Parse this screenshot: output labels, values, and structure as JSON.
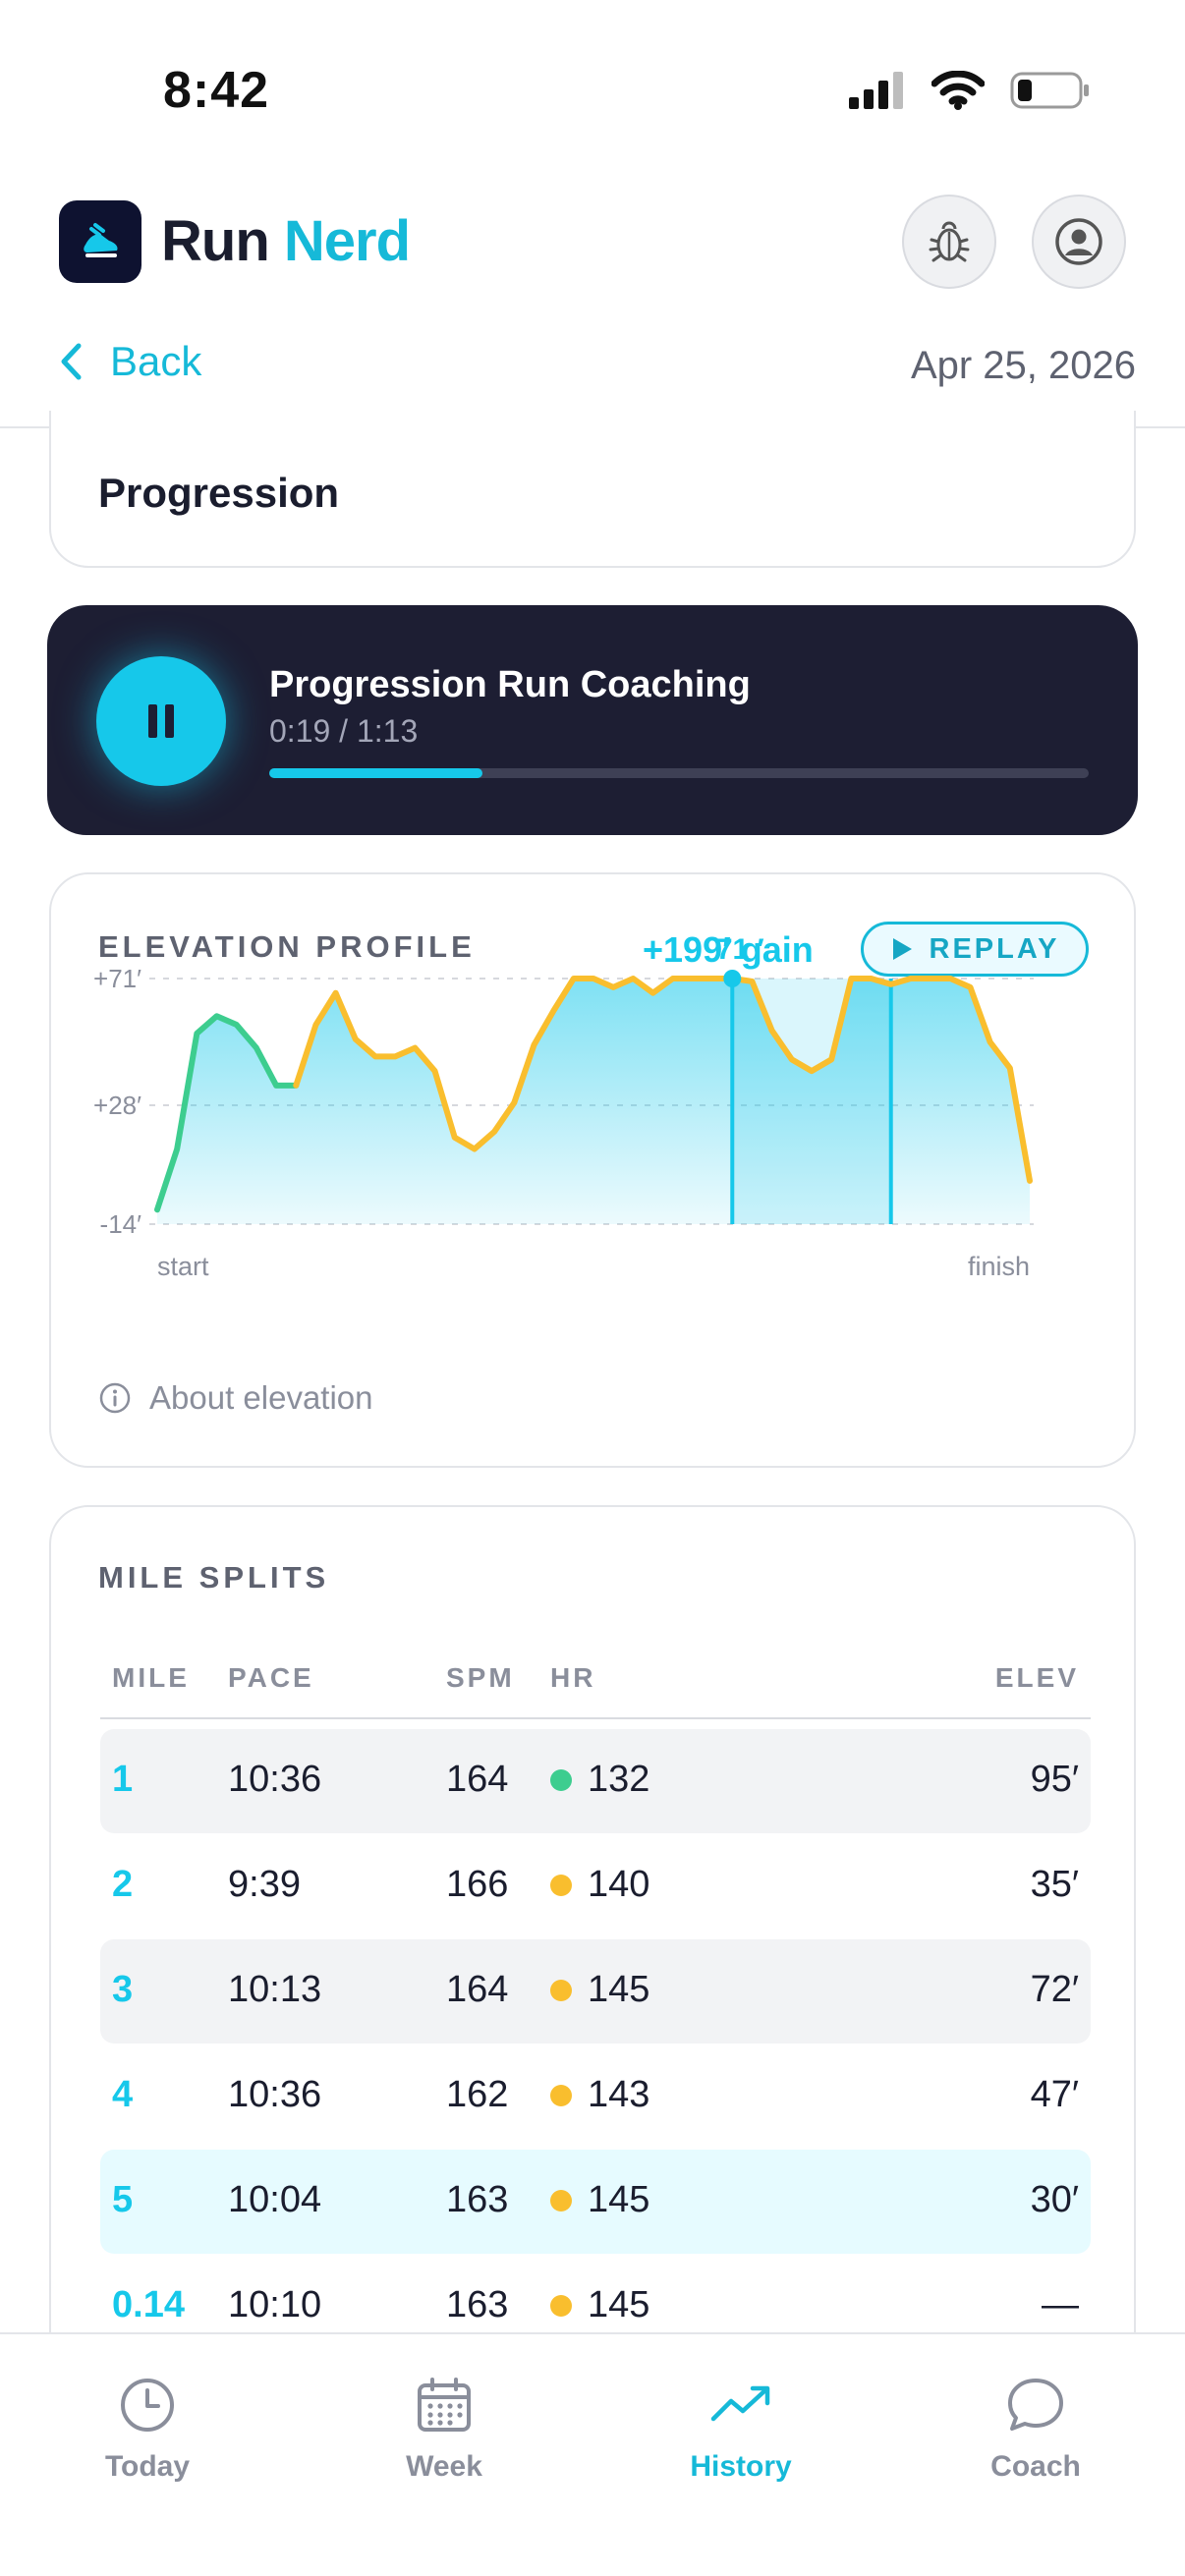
{
  "status_bar": {
    "time": "8:42"
  },
  "header": {
    "app_name_1": "Run",
    "app_name_2": "Nerd"
  },
  "nav": {
    "back_label": "Back",
    "date": "Apr 25, 2026"
  },
  "workout": {
    "title": "Progression"
  },
  "coaching": {
    "title": "Progression Run Coaching",
    "time": "0:19 / 1:13",
    "progress": 0.26
  },
  "elevation": {
    "label": "ELEVATION PROFILE",
    "gain": "+199′ gain",
    "replay_label": "REPLAY",
    "marker_label": "71 ′",
    "about_label": "About elevation"
  },
  "chart_data": {
    "type": "area",
    "y_tick_labels": [
      "+71′",
      "+28′",
      "-14′"
    ],
    "x_labels": [
      "start",
      "finish"
    ],
    "ylim": [
      -14,
      71
    ],
    "y_values": [
      -9,
      12,
      52,
      58,
      55,
      47,
      34,
      34,
      55,
      66,
      50,
      44,
      44,
      47,
      39,
      16,
      12,
      18,
      28,
      48,
      60,
      73,
      81,
      68,
      71,
      66,
      74,
      71,
      74,
      75,
      70,
      53,
      43,
      39,
      43,
      72,
      79,
      69,
      74,
      72,
      74,
      68,
      49,
      40,
      1
    ],
    "colors": {
      "green": "#3dcd8f",
      "yellow": "#f9be2e",
      "fill": "#16c8ea"
    },
    "highlight_segment": [
      29,
      37
    ],
    "marker_index": 29
  },
  "splits": {
    "label": "MILE SPLITS",
    "columns": [
      "MILE",
      "PACE",
      "SPM",
      "HR",
      "ELEV"
    ],
    "rows": [
      {
        "mile": "1",
        "pace": "10:36",
        "spm": "164",
        "hr": "132",
        "hr_color": "#3dcd8f",
        "elev": "95′"
      },
      {
        "mile": "2",
        "pace": "9:39",
        "spm": "166",
        "hr": "140",
        "hr_color": "#f9be2e",
        "elev": "35′"
      },
      {
        "mile": "3",
        "pace": "10:13",
        "spm": "164",
        "hr": "145",
        "hr_color": "#f9be2e",
        "elev": "72′"
      },
      {
        "mile": "4",
        "pace": "10:36",
        "spm": "162",
        "hr": "143",
        "hr_color": "#f9be2e",
        "elev": "47′"
      },
      {
        "mile": "5",
        "pace": "10:04",
        "spm": "163",
        "hr": "145",
        "hr_color": "#f9be2e",
        "elev": "30′"
      },
      {
        "mile": "0.14",
        "pace": "10:10",
        "spm": "163",
        "hr": "145",
        "hr_color": "#f9be2e",
        "elev": "—"
      }
    ]
  },
  "tabs": [
    {
      "label": "Today",
      "icon": "clock-icon"
    },
    {
      "label": "Week",
      "icon": "calendar-icon"
    },
    {
      "label": "History",
      "icon": "trend-icon",
      "active": true
    },
    {
      "label": "Coach",
      "icon": "chat-icon"
    }
  ]
}
